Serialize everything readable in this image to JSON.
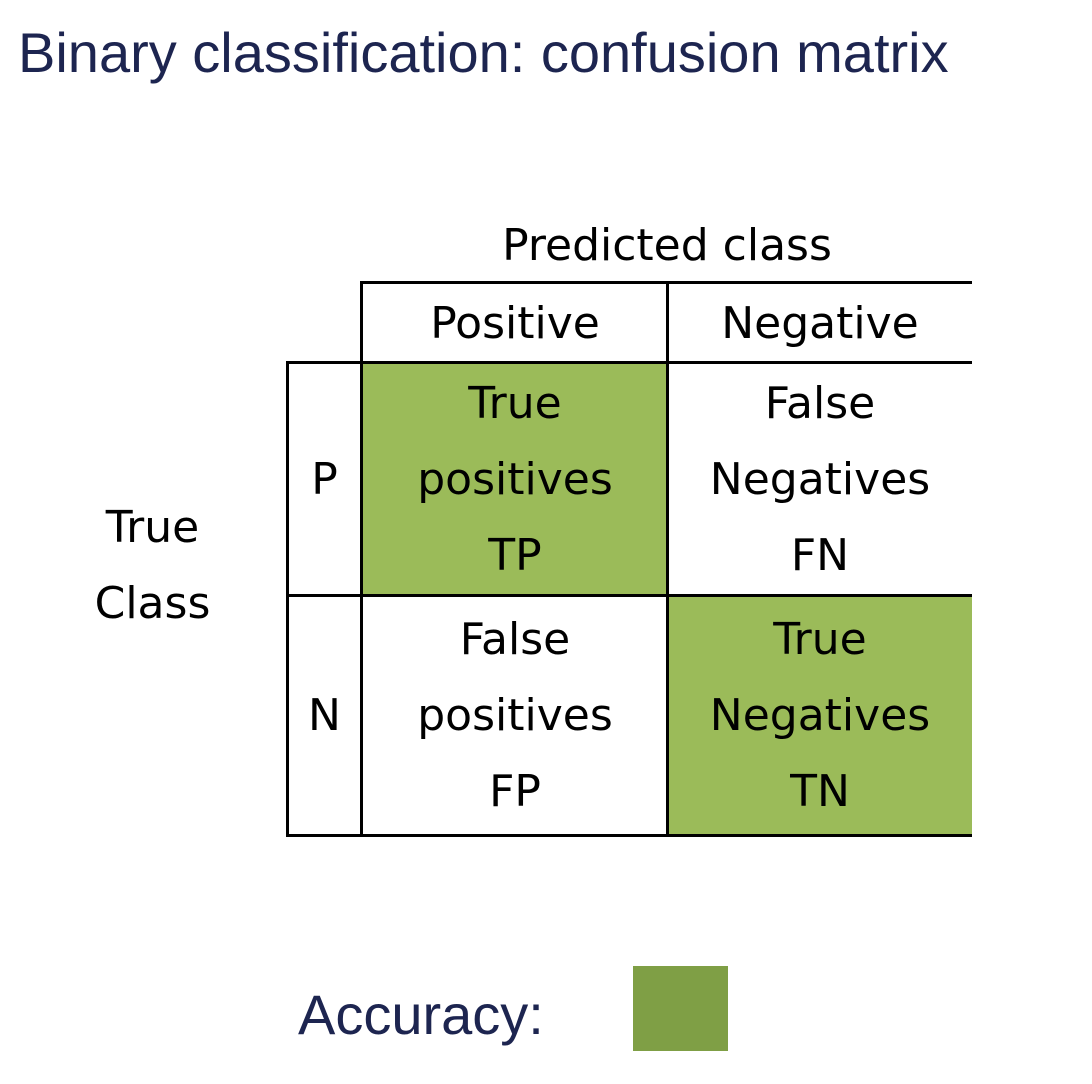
{
  "title": "Binary classification: confusion matrix",
  "matrix": {
    "predicted_header": "Predicted class",
    "true_header_line1": "True",
    "true_header_line2": "Class",
    "col_labels": [
      "Positive",
      "Negative"
    ],
    "row_labels": [
      "P",
      "N"
    ],
    "cells": [
      [
        {
          "line1": "True",
          "line2": "positives",
          "line3": "TP"
        },
        {
          "line1": "False",
          "line2": "Negatives",
          "line3": "FN"
        }
      ],
      [
        {
          "line1": "False",
          "line2": "positives",
          "line3": "FP"
        },
        {
          "line1": "True",
          "line2": "Negatives",
          "line3": "TN"
        }
      ]
    ],
    "highlight_color": "#9bbb59"
  },
  "legend": {
    "label": "Accuracy:",
    "swatch_color": "#7f9f45"
  }
}
